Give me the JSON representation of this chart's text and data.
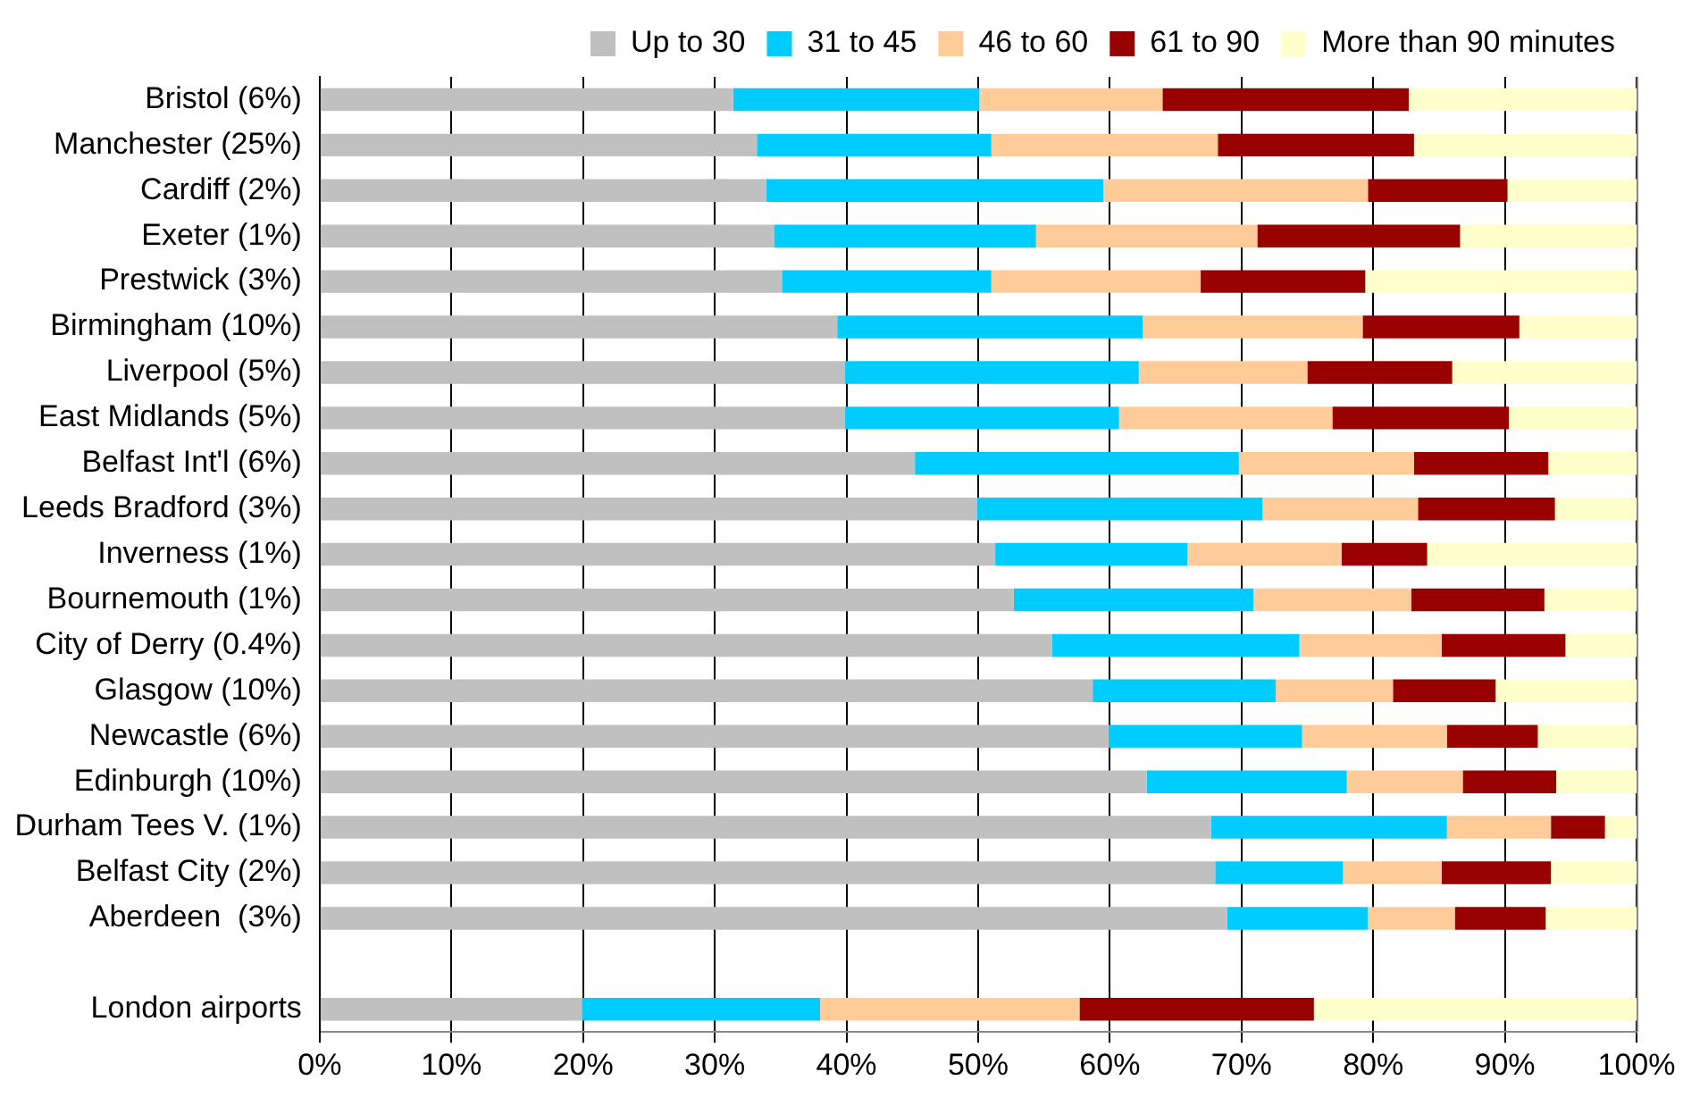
{
  "chart_data": {
    "type": "bar",
    "orientation": "horizontal",
    "stacked": true,
    "legend": "top",
    "grid": "x",
    "categories": [
      "Bristol (6%)",
      "Manchester (25%)",
      "Cardiff (2%)",
      "Exeter (1%)",
      "Prestwick (3%)",
      "Birmingham (10%)",
      "Liverpool (5%)",
      "East Midlands (5%)",
      "Belfast Int'l (6%)",
      "Leeds Bradford (3%)",
      "Inverness (1%)",
      "Bournemouth (1%)",
      "City of Derry (0.4%)",
      "Glasgow (10%)",
      "Newcastle (6%)",
      "Edinburgh (10%)",
      "Durham Tees V. (1%)",
      "Belfast City (2%)",
      "Aberdeen  (3%)",
      null,
      "London airports"
    ],
    "xlim": [
      0,
      100
    ],
    "xticks": [
      {
        "value": 0,
        "label": "0%"
      },
      {
        "value": 10,
        "label": "10%"
      },
      {
        "value": 20,
        "label": "20%"
      },
      {
        "value": 30,
        "label": "30%"
      },
      {
        "value": 40,
        "label": "40%"
      },
      {
        "value": 50,
        "label": "50%"
      },
      {
        "value": 60,
        "label": "60%"
      },
      {
        "value": 70,
        "label": "70%"
      },
      {
        "value": 80,
        "label": "80%"
      },
      {
        "value": 90,
        "label": "90%"
      },
      {
        "value": 100,
        "label": "100%"
      }
    ],
    "series": [
      {
        "name": "Up to 30",
        "color": "#c0c0c0",
        "values": [
          31.4,
          33.2,
          33.9,
          34.5,
          35.1,
          39.3,
          39.9,
          39.9,
          45.2,
          49.9,
          51.3,
          52.7,
          55.6,
          58.7,
          59.9,
          62.8,
          67.7,
          68.0,
          68.9,
          null,
          19.9
        ]
      },
      {
        "name": "31 to 45",
        "color": "#00ccff",
        "values": [
          18.7,
          17.8,
          25.6,
          19.9,
          15.9,
          23.2,
          22.3,
          20.8,
          24.6,
          21.7,
          14.6,
          18.2,
          18.8,
          13.9,
          14.7,
          15.2,
          17.9,
          9.7,
          10.7,
          null,
          18.1
        ]
      },
      {
        "name": "46 to 60",
        "color": "#ffcc99",
        "values": [
          13.9,
          17.2,
          20.1,
          16.8,
          15.9,
          16.7,
          12.8,
          16.2,
          13.3,
          11.8,
          11.7,
          12.0,
          10.8,
          8.9,
          11.0,
          8.8,
          7.9,
          7.5,
          6.6,
          null,
          19.7
        ]
      },
      {
        "name": "61 to 90",
        "color": "#990000",
        "values": [
          18.7,
          14.9,
          10.6,
          15.4,
          12.5,
          11.9,
          11.0,
          13.4,
          10.2,
          10.4,
          6.5,
          10.1,
          9.4,
          7.8,
          6.9,
          7.1,
          4.1,
          8.3,
          6.9,
          null,
          17.8
        ]
      },
      {
        "name": "More than 90 minutes",
        "color": "#ffffcc",
        "values": [
          17.3,
          16.9,
          9.8,
          13.4,
          20.6,
          8.9,
          14.0,
          9.7,
          6.7,
          6.2,
          15.9,
          7.0,
          5.4,
          10.7,
          7.5,
          6.1,
          2.4,
          6.5,
          6.9,
          null,
          24.5
        ]
      }
    ]
  }
}
